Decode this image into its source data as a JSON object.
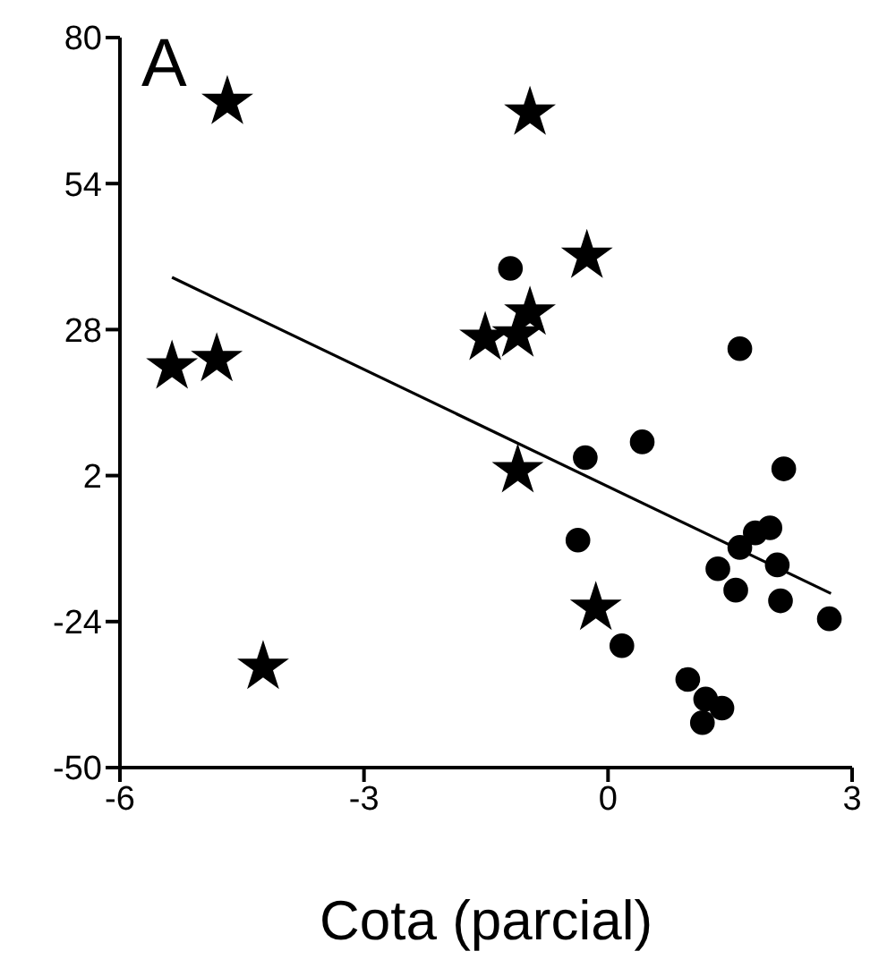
{
  "chart_data": {
    "type": "scatter",
    "xlabel": "Cota (parcial)",
    "annotations": [
      "A"
    ],
    "xlim": [
      -6,
      3
    ],
    "xticks": [
      -6,
      -3,
      0,
      3
    ],
    "ylim": [
      -50,
      80
    ],
    "yticks": [
      -50,
      -24,
      2,
      28,
      54,
      80
    ],
    "grid": false,
    "legend": false,
    "series": [
      {
        "color": "#000000",
        "marker": "star",
        "x": [
          -4.68,
          -0.96,
          -5.36,
          -4.81,
          -4.24,
          -0.26,
          -0.96,
          -1.51,
          -1.11,
          -1.11,
          -0.15
        ],
        "values": [
          68.5,
          66.6,
          21.4,
          22.7,
          -32.1,
          41.1,
          31.0,
          26.5,
          27.1,
          2.9,
          -21.6
        ]
      },
      {
        "color": "#000000",
        "marker": "circle",
        "x": [
          -1.2,
          1.62,
          -0.28,
          0.42,
          2.16,
          -0.37,
          0.17,
          1.62,
          1.81,
          1.99,
          2.08,
          1.35,
          1.57,
          2.12,
          2.72,
          0.98,
          1.2,
          1.4,
          1.16
        ],
        "values": [
          38.9,
          24.6,
          5.2,
          8.0,
          3.2,
          -9.5,
          -28.3,
          -10.8,
          -8.2,
          -7.3,
          -13.9,
          -14.6,
          -18.4,
          -20.3,
          -23.5,
          -34.3,
          -37.8,
          -39.4,
          -42.0
        ]
      },
      {
        "type": "line",
        "color": "#000000",
        "marker": "none",
        "line_style": "solid",
        "x": [
          -5.36,
          2.74
        ],
        "values": [
          37.3,
          -19.0
        ]
      }
    ]
  }
}
